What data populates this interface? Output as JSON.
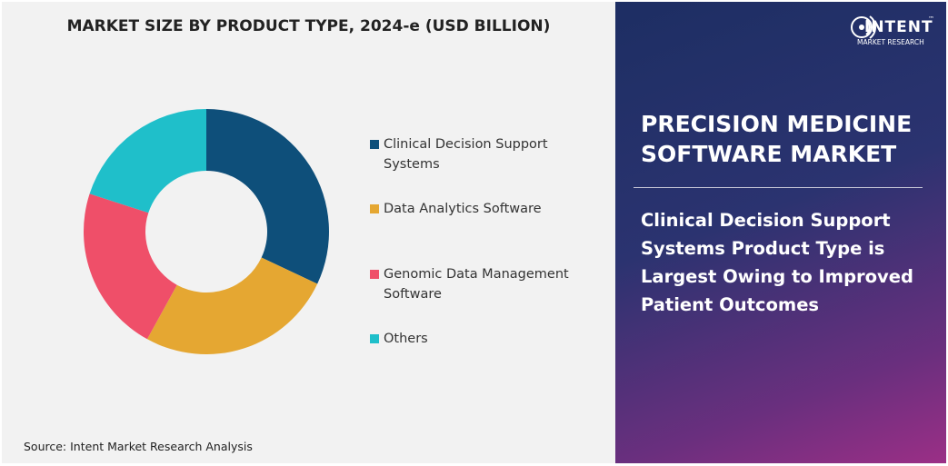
{
  "chart_data": {
    "type": "donut",
    "title": "MARKET SIZE BY PRODUCT TYPE, 2024-e (USD BILLION)",
    "categories": [
      "Clinical Decision Support Systems",
      "Data Analytics Software",
      "Genomic Data Management Software",
      "Others"
    ],
    "values": [
      32,
      26,
      22,
      20
    ],
    "colors": [
      "#0e4f7a",
      "#e5a732",
      "#ef4f69",
      "#1fbfca"
    ],
    "source": "Source: Intent Market Research Analysis"
  },
  "logo": {
    "name": "INTENT",
    "mark": "™",
    "sub": "MARKET RESEARCH"
  },
  "panel": {
    "heading": "PRECISION MEDICINE SOFTWARE MARKET",
    "text": "Clinical Decision Support Systems Product Type is Largest Owing to Improved Patient Outcomes"
  }
}
